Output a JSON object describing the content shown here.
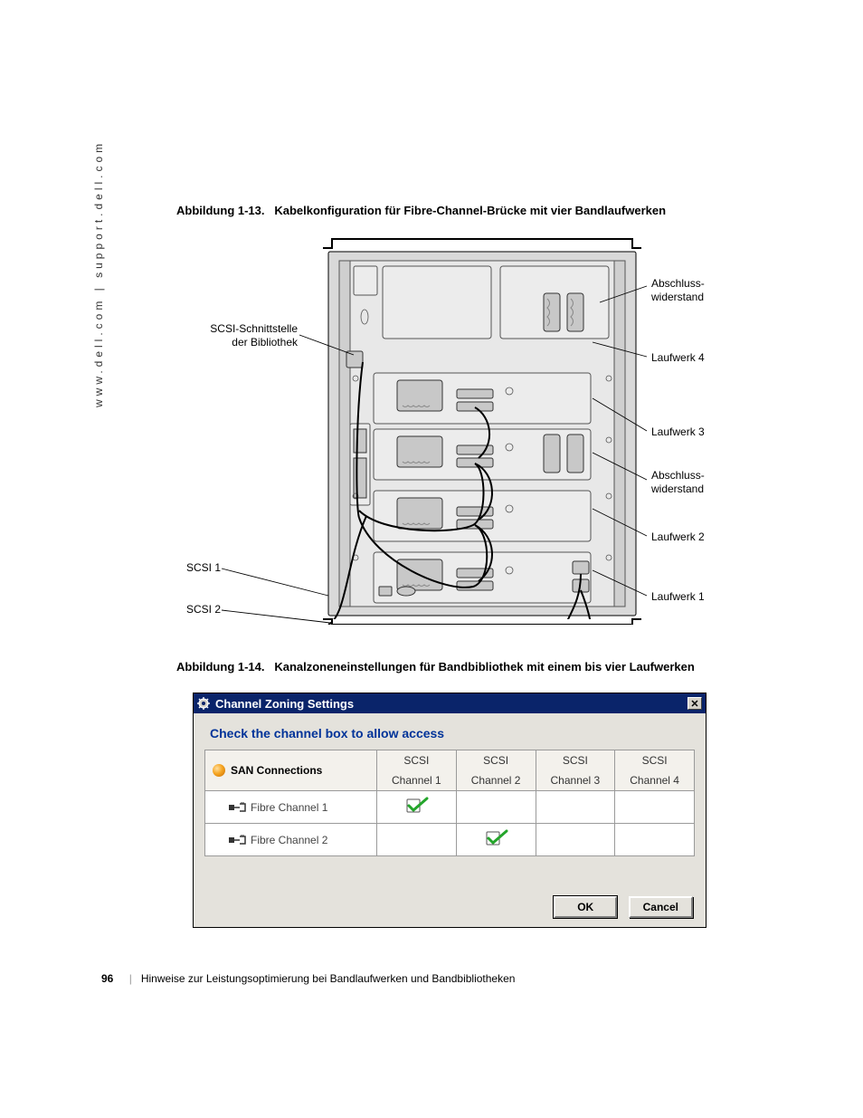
{
  "sidebar": {
    "text": "www.dell.com | support.dell.com"
  },
  "fig1": {
    "caption_prefix": "Abbildung 1-13.",
    "caption_text": "Kabelkonfiguration für Fibre-Channel-Brücke mit vier Bandlaufwerken",
    "labels": {
      "scsi_interface_l1": "SCSI-Schnittstelle",
      "scsi_interface_l2": "der Bibliothek",
      "scsi1": "SCSI 1",
      "scsi2": "SCSI 2",
      "term1_l1": "Abschluss-",
      "term1_l2": "widerstand",
      "drive4": "Laufwerk 4",
      "drive3": "Laufwerk 3",
      "term2_l1": "Abschluss-",
      "term2_l2": "widerstand",
      "drive2": "Laufwerk 2",
      "drive1": "Laufwerk 1"
    },
    "colors": {
      "chassis_bg": "#d9d9d9",
      "bay": "#e8e8e8",
      "drive": "#ececec"
    }
  },
  "fig2": {
    "caption_prefix": "Abbildung 1-14.",
    "caption_text": "Kanalzoneneinstellungen für Bandbibliothek mit einem bis vier Laufwerken",
    "title": "Channel Zoning Settings",
    "subtitle": "Check the channel box to allow access",
    "row_header": "SAN Connections",
    "columns": [
      {
        "l1": "SCSI",
        "l2": "Channel 1"
      },
      {
        "l1": "SCSI",
        "l2": "Channel 2"
      },
      {
        "l1": "SCSI",
        "l2": "Channel 3"
      },
      {
        "l1": "SCSI",
        "l2": "Channel 4"
      }
    ],
    "rows": [
      {
        "label": "Fibre Channel 1",
        "checks": [
          true,
          false,
          false,
          false
        ]
      },
      {
        "label": "Fibre Channel 2",
        "checks": [
          false,
          true,
          false,
          false
        ]
      }
    ],
    "buttons": {
      "ok": "OK",
      "cancel": "Cancel"
    },
    "colors": {
      "titlebar": "#0a246a",
      "dialog_bg": "#e4e2dc",
      "heading": "#003399",
      "check": "#24a52b"
    }
  },
  "footer": {
    "page_number": "96",
    "text": "Hinweise zur Leistungsoptimierung bei Bandlaufwerken und Bandbibliotheken"
  }
}
